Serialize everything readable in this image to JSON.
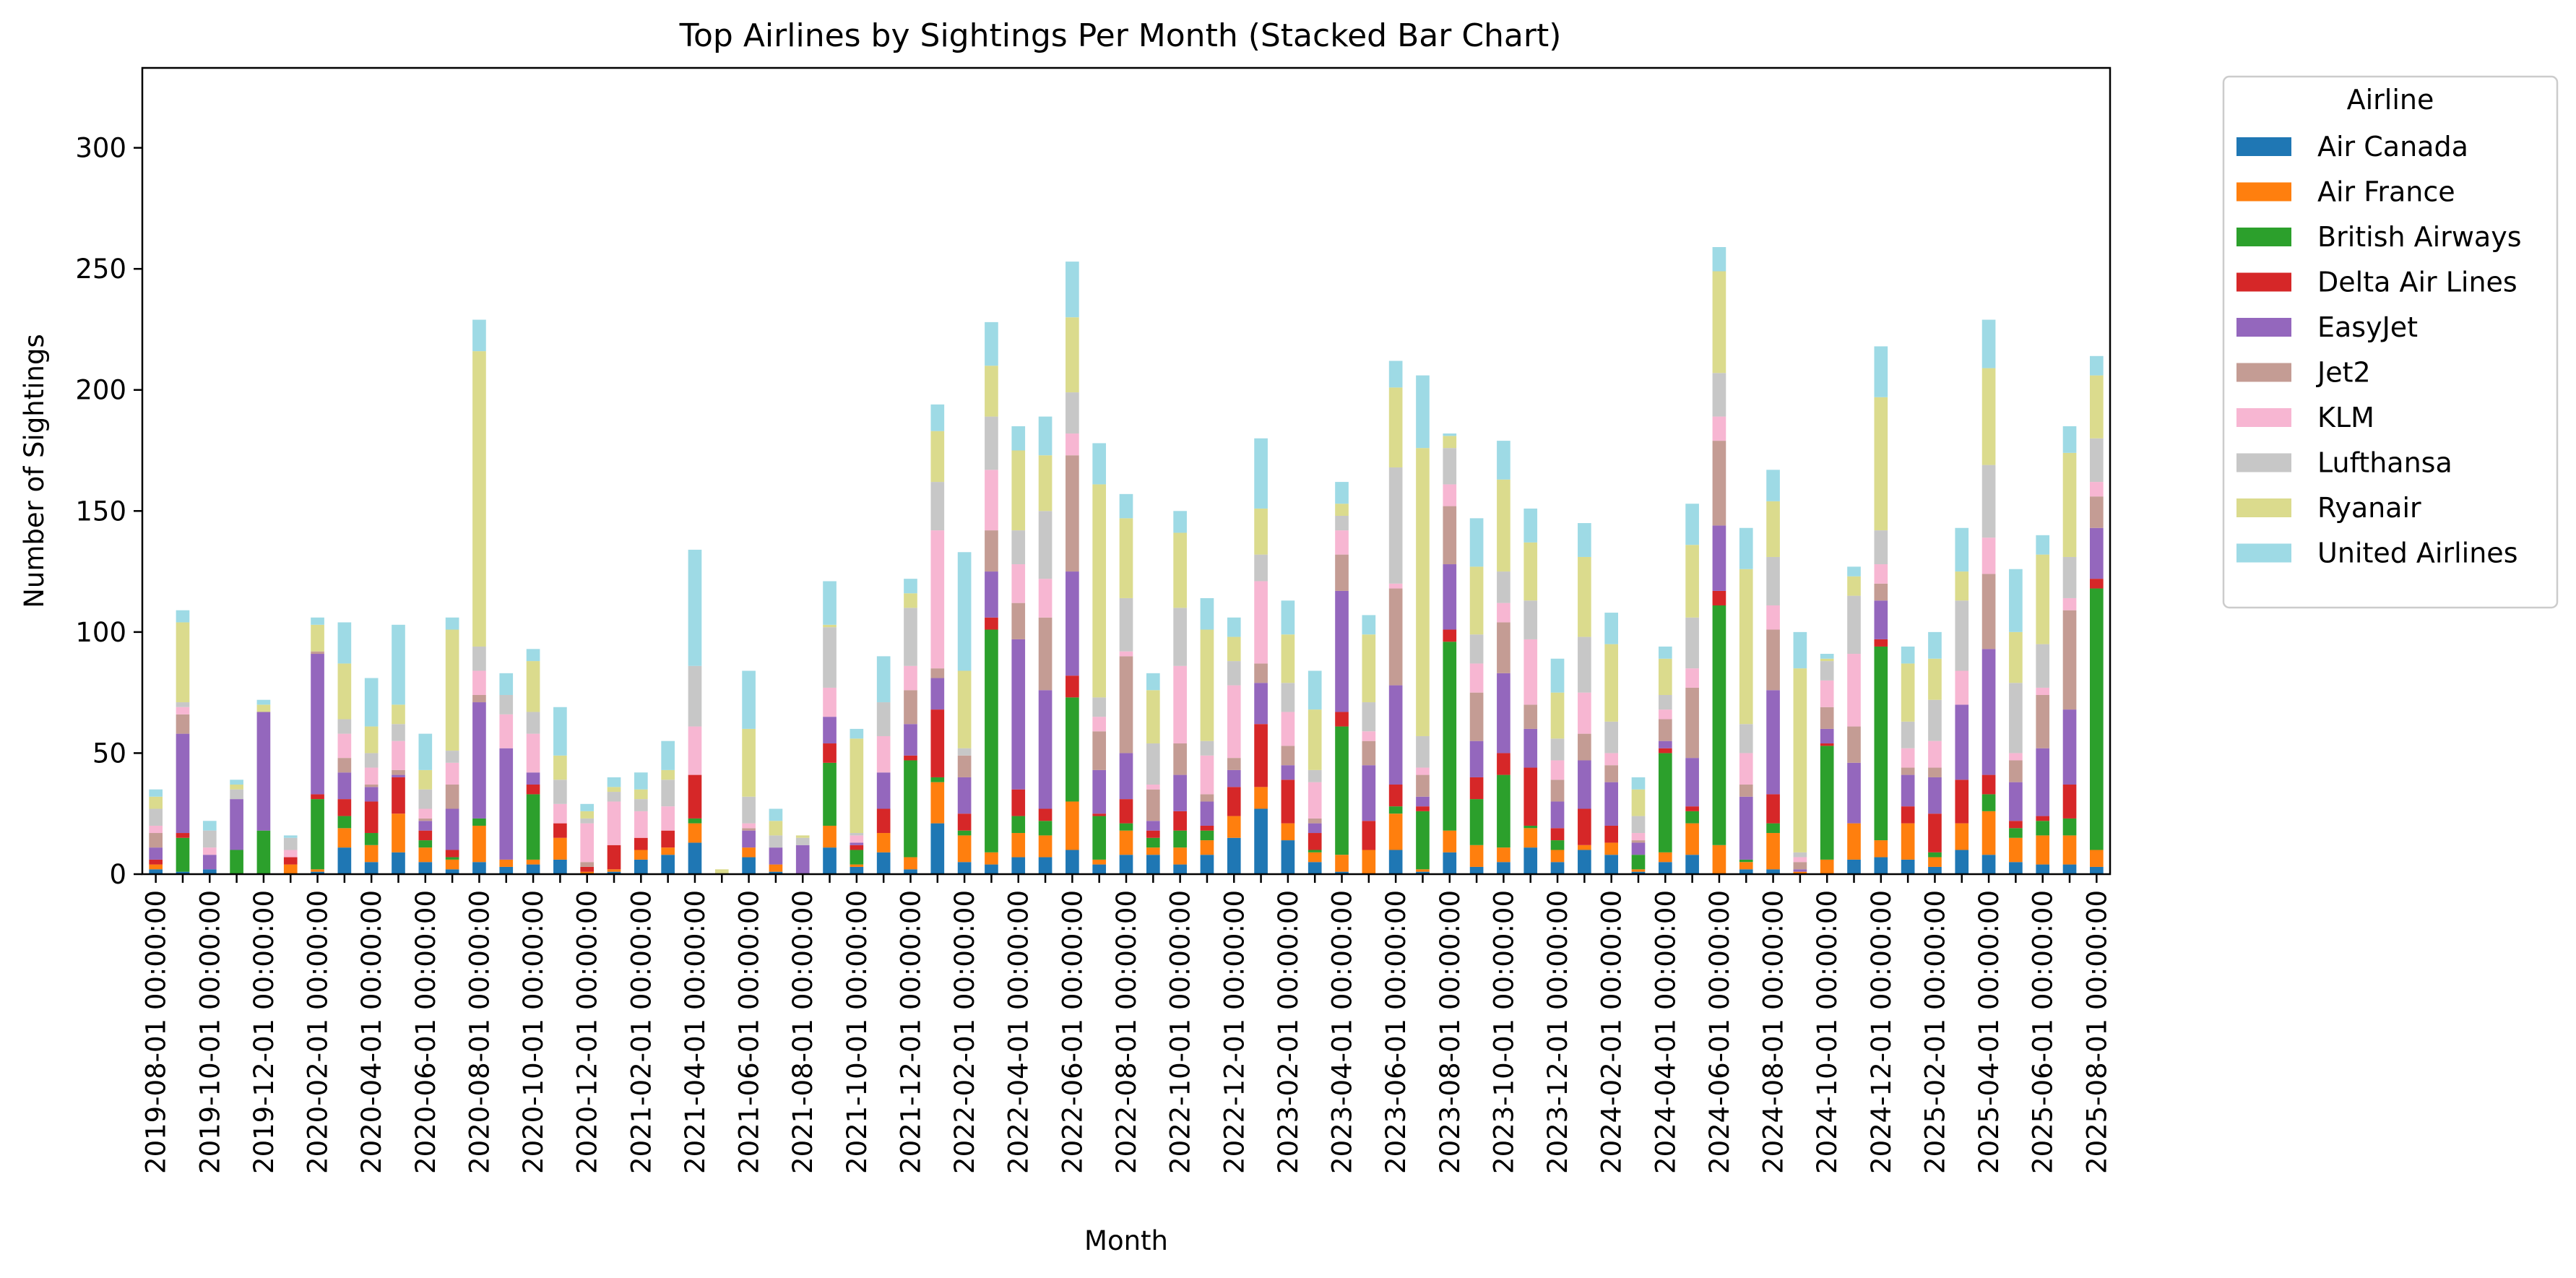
{
  "chart_data": {
    "type": "bar",
    "stacked": true,
    "title": "Top Airlines by Sightings Per Month (Stacked Bar Chart)",
    "xlabel": "Month",
    "ylabel": "Number of Sightings",
    "ylim": [
      0,
      333
    ],
    "yticks": [
      0,
      50,
      100,
      150,
      200,
      250,
      300
    ],
    "grid": false,
    "legend": {
      "title": "Airline",
      "placement": "outside-right-top"
    },
    "categories": [
      "2019-08-01 00:00:00",
      "2019-09-01 00:00:00",
      "2019-10-01 00:00:00",
      "2019-11-01 00:00:00",
      "2019-12-01 00:00:00",
      "2020-01-01 00:00:00",
      "2020-02-01 00:00:00",
      "2020-03-01 00:00:00",
      "2020-04-01 00:00:00",
      "2020-05-01 00:00:00",
      "2020-06-01 00:00:00",
      "2020-07-01 00:00:00",
      "2020-08-01 00:00:00",
      "2020-09-01 00:00:00",
      "2020-10-01 00:00:00",
      "2020-11-01 00:00:00",
      "2020-12-01 00:00:00",
      "2021-01-01 00:00:00",
      "2021-02-01 00:00:00",
      "2021-03-01 00:00:00",
      "2021-04-01 00:00:00",
      "2021-05-01 00:00:00",
      "2021-06-01 00:00:00",
      "2021-07-01 00:00:00",
      "2021-08-01 00:00:00",
      "2021-09-01 00:00:00",
      "2021-10-01 00:00:00",
      "2021-11-01 00:00:00",
      "2021-12-01 00:00:00",
      "2022-01-01 00:00:00",
      "2022-02-01 00:00:00",
      "2022-03-01 00:00:00",
      "2022-04-01 00:00:00",
      "2022-05-01 00:00:00",
      "2022-06-01 00:00:00",
      "2022-07-01 00:00:00",
      "2022-08-01 00:00:00",
      "2022-09-01 00:00:00",
      "2022-10-01 00:00:00",
      "2022-11-01 00:00:00",
      "2022-12-01 00:00:00",
      "2023-01-01 00:00:00",
      "2023-02-01 00:00:00",
      "2023-03-01 00:00:00",
      "2023-04-01 00:00:00",
      "2023-05-01 00:00:00",
      "2023-06-01 00:00:00",
      "2023-07-01 00:00:00",
      "2023-08-01 00:00:00",
      "2023-09-01 00:00:00",
      "2023-10-01 00:00:00",
      "2023-11-01 00:00:00",
      "2023-12-01 00:00:00",
      "2024-01-01 00:00:00",
      "2024-02-01 00:00:00",
      "2024-03-01 00:00:00",
      "2024-04-01 00:00:00",
      "2024-05-01 00:00:00",
      "2024-06-01 00:00:00",
      "2024-07-01 00:00:00",
      "2024-08-01 00:00:00",
      "2024-09-01 00:00:00",
      "2024-10-01 00:00:00",
      "2024-11-01 00:00:00",
      "2024-12-01 00:00:00",
      "2025-01-01 00:00:00",
      "2025-02-01 00:00:00",
      "2025-03-01 00:00:00",
      "2025-04-01 00:00:00",
      "2025-05-01 00:00:00",
      "2025-06-01 00:00:00",
      "2025-07-01 00:00:00",
      "2025-08-01 00:00:00"
    ],
    "series": [
      {
        "name": "Air Canada",
        "color": "#1f77b4",
        "values": [
          2,
          1,
          2,
          0,
          0,
          0,
          1,
          11,
          5,
          9,
          5,
          2,
          5,
          3,
          4,
          6,
          0,
          1,
          6,
          8,
          13,
          0,
          7,
          1,
          0,
          11,
          3,
          9,
          2,
          21,
          5,
          4,
          7,
          7,
          10,
          4,
          8,
          8,
          4,
          8,
          15,
          27,
          14,
          5,
          1,
          0,
          10,
          1,
          9,
          3,
          5,
          11,
          5,
          10,
          8,
          1,
          5,
          8,
          0,
          2,
          2,
          0,
          0,
          6,
          7,
          6,
          3,
          10,
          8,
          5,
          4,
          4,
          3
        ]
      },
      {
        "name": "Air France",
        "color": "#ff7f0e",
        "values": [
          2,
          0,
          0,
          0,
          0,
          4,
          1,
          8,
          7,
          16,
          6,
          4,
          15,
          3,
          2,
          9,
          1,
          1,
          4,
          3,
          8,
          0,
          4,
          3,
          0,
          9,
          1,
          8,
          5,
          17,
          11,
          5,
          10,
          9,
          20,
          2,
          10,
          3,
          7,
          6,
          9,
          9,
          7,
          4,
          7,
          10,
          15,
          1,
          9,
          9,
          6,
          8,
          5,
          2,
          5,
          1,
          4,
          13,
          12,
          3,
          15,
          1,
          6,
          15,
          7,
          15,
          4,
          11,
          18,
          10,
          12,
          12,
          7
        ]
      },
      {
        "name": "British Airways",
        "color": "#2ca02c",
        "values": [
          0,
          14,
          0,
          10,
          18,
          0,
          29,
          5,
          5,
          0,
          3,
          1,
          3,
          0,
          27,
          0,
          0,
          0,
          0,
          0,
          2,
          0,
          0,
          0,
          0,
          26,
          6,
          0,
          40,
          2,
          2,
          92,
          7,
          6,
          43,
          18,
          3,
          4,
          7,
          4,
          0,
          0,
          0,
          1,
          53,
          0,
          3,
          24,
          78,
          19,
          30,
          1,
          4,
          0,
          0,
          6,
          41,
          5,
          99,
          1,
          4,
          0,
          47,
          0,
          80,
          0,
          2,
          0,
          7,
          4,
          6,
          7,
          108
        ]
      },
      {
        "name": "Delta Air Lines",
        "color": "#d62728",
        "values": [
          2,
          2,
          0,
          0,
          0,
          3,
          2,
          7,
          13,
          15,
          4,
          3,
          0,
          0,
          4,
          6,
          2,
          10,
          5,
          7,
          18,
          0,
          0,
          0,
          0,
          8,
          2,
          10,
          2,
          28,
          7,
          5,
          11,
          5,
          9,
          1,
          10,
          3,
          8,
          2,
          12,
          26,
          18,
          7,
          6,
          12,
          9,
          2,
          5,
          9,
          9,
          24,
          5,
          15,
          7,
          0,
          2,
          2,
          6,
          0,
          12,
          0,
          1,
          0,
          3,
          7,
          16,
          18,
          8,
          3,
          2,
          14,
          4
        ]
      },
      {
        "name": "EasyJet",
        "color": "#9467bd",
        "values": [
          5,
          41,
          6,
          21,
          49,
          0,
          58,
          11,
          6,
          1,
          4,
          17,
          48,
          46,
          5,
          0,
          0,
          0,
          0,
          0,
          0,
          0,
          7,
          7,
          12,
          11,
          1,
          15,
          13,
          13,
          15,
          19,
          62,
          49,
          43,
          18,
          19,
          4,
          15,
          10,
          7,
          17,
          6,
          4,
          50,
          23,
          41,
          4,
          27,
          15,
          33,
          16,
          11,
          20,
          18,
          5,
          3,
          20,
          27,
          26,
          43,
          1,
          6,
          25,
          16,
          13,
          15,
          31,
          52,
          16,
          28,
          31,
          21
        ]
      },
      {
        "name": "Jet2",
        "color": "#c49c94",
        "values": [
          6,
          8,
          0,
          0,
          0,
          0,
          1,
          6,
          1,
          2,
          1,
          10,
          3,
          0,
          0,
          0,
          2,
          0,
          0,
          0,
          0,
          0,
          1,
          0,
          0,
          0,
          0,
          0,
          14,
          4,
          9,
          17,
          15,
          30,
          48,
          16,
          40,
          13,
          13,
          3,
          5,
          8,
          8,
          2,
          15,
          10,
          40,
          9,
          24,
          20,
          21,
          10,
          9,
          11,
          7,
          1,
          9,
          29,
          35,
          5,
          25,
          3,
          9,
          15,
          7,
          3,
          4,
          0,
          31,
          9,
          22,
          41,
          13
        ]
      },
      {
        "name": "KLM",
        "color": "#f7b6d2",
        "values": [
          3,
          3,
          3,
          0,
          0,
          3,
          0,
          10,
          7,
          12,
          4,
          9,
          10,
          14,
          16,
          8,
          16,
          18,
          11,
          10,
          20,
          0,
          2,
          0,
          0,
          12,
          3,
          15,
          10,
          57,
          0,
          25,
          16,
          16,
          9,
          6,
          2,
          2,
          32,
          16,
          30,
          34,
          14,
          15,
          10,
          4,
          2,
          3,
          9,
          12,
          8,
          27,
          8,
          17,
          5,
          3,
          4,
          8,
          10,
          13,
          10,
          2,
          11,
          30,
          8,
          8,
          11,
          14,
          15,
          3,
          3,
          5,
          6
        ]
      },
      {
        "name": "Lufthansa",
        "color": "#c7c7c7",
        "values": [
          7,
          2,
          7,
          4,
          0,
          5,
          0,
          6,
          6,
          7,
          8,
          5,
          10,
          8,
          9,
          10,
          2,
          4,
          5,
          11,
          25,
          0,
          11,
          5,
          3,
          25,
          1,
          14,
          24,
          20,
          3,
          22,
          14,
          28,
          17,
          8,
          22,
          17,
          24,
          6,
          10,
          11,
          12,
          5,
          6,
          12,
          48,
          13,
          15,
          12,
          13,
          16,
          9,
          23,
          13,
          7,
          6,
          21,
          18,
          12,
          20,
          2,
          8,
          24,
          14,
          11,
          17,
          29,
          30,
          29,
          18,
          17,
          18
        ]
      },
      {
        "name": "Ryanair",
        "color": "#dbdb8d",
        "values": [
          5,
          33,
          0,
          2,
          3,
          0,
          11,
          23,
          11,
          8,
          8,
          50,
          122,
          0,
          21,
          10,
          3,
          2,
          4,
          4,
          0,
          2,
          28,
          6,
          1,
          1,
          39,
          0,
          6,
          21,
          32,
          21,
          33,
          23,
          31,
          88,
          33,
          22,
          31,
          46,
          10,
          19,
          20,
          25,
          5,
          28,
          33,
          119,
          5,
          28,
          38,
          24,
          19,
          33,
          32,
          11,
          15,
          30,
          42,
          64,
          23,
          76,
          1,
          8,
          55,
          24,
          17,
          12,
          40,
          21,
          37,
          43,
          26
        ]
      },
      {
        "name": "United Airlines",
        "color": "#9edae5",
        "values": [
          3,
          5,
          4,
          2,
          2,
          1,
          3,
          17,
          20,
          33,
          15,
          5,
          13,
          9,
          5,
          20,
          3,
          4,
          7,
          12,
          48,
          0,
          24,
          5,
          0,
          18,
          4,
          19,
          6,
          11,
          49,
          18,
          10,
          16,
          23,
          17,
          10,
          7,
          9,
          13,
          8,
          29,
          14,
          16,
          9,
          8,
          11,
          30,
          1,
          20,
          16,
          14,
          14,
          14,
          13,
          5,
          5,
          17,
          10,
          17,
          13,
          15,
          2,
          4,
          21,
          7,
          11,
          18,
          20,
          26,
          8,
          11,
          8
        ]
      }
    ]
  }
}
